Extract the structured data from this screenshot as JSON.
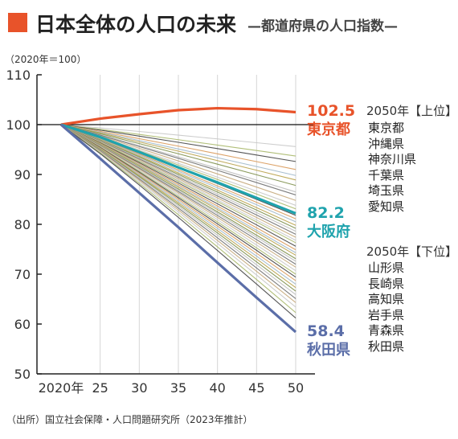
{
  "header": {
    "title": "日本全体の人口の未来",
    "subtitle": "—都道府県の人口指数—",
    "accent_color": "#e8532a"
  },
  "source": "（出所）国立社会保障・人口問題研究所（2023年推計）",
  "chart_data": {
    "type": "line",
    "unit_note": "（2020年＝100）",
    "xlabel": "",
    "ylabel": "",
    "x": [
      2020,
      2025,
      2030,
      2035,
      2040,
      2045,
      2050
    ],
    "x_tick_labels": [
      "2020年",
      "25",
      "30",
      "35",
      "40",
      "45",
      "50"
    ],
    "ylim": [
      50,
      110
    ],
    "y_ticks": [
      50,
      60,
      70,
      80,
      90,
      100,
      110
    ],
    "grid": "vertical",
    "highlight_series": [
      {
        "name": "東京都",
        "color": "#e8532a",
        "end_label": "102.5",
        "values": [
          100,
          101.2,
          102.1,
          102.9,
          103.3,
          103.1,
          102.5
        ]
      },
      {
        "name": "大阪府",
        "color": "#1fa3ad",
        "end_label": "82.2",
        "values": [
          100,
          97.5,
          94.5,
          91.4,
          88.4,
          85.3,
          82.2
        ]
      },
      {
        "name": "秋田県",
        "color": "#5b6ea8",
        "end_label": "58.4",
        "values": [
          100,
          93.2,
          86.3,
          79.4,
          72.3,
          65.3,
          58.4
        ]
      }
    ],
    "other_prefecture_final_values": [
      95.6,
      93.7,
      92.6,
      91.0,
      89.8,
      88.9,
      87.8,
      86.5,
      85.9,
      84.8,
      83.8,
      83.1,
      81.8,
      81.1,
      80.5,
      79.8,
      79.2,
      78.6,
      78.0,
      77.4,
      76.8,
      76.3,
      75.6,
      74.9,
      74.3,
      73.8,
      73.1,
      72.6,
      72.0,
      71.4,
      70.7,
      70.0,
      69.4,
      68.7,
      68.0,
      67.3,
      66.6,
      65.9,
      65.1,
      64.3,
      63.4,
      62.3,
      61.2
    ],
    "other_line_colors": [
      "#c8c8c8",
      "#a8b86a",
      "#444444",
      "#d99a5a",
      "#9fb7c9",
      "#b9a24a",
      "#7d8f4a",
      "#bdbdbd",
      "#6f6f6f",
      "#c5a87a"
    ],
    "baseline_color": "#111111"
  },
  "rankings": {
    "top_heading": "2050年【上位】",
    "top": [
      "東京都",
      "沖縄県",
      "神奈川県",
      "千葉県",
      "埼玉県",
      "愛知県"
    ],
    "bottom_heading": "2050年【下位】",
    "bottom": [
      "山形県",
      "長崎県",
      "高知県",
      "岩手県",
      "青森県",
      "秋田県"
    ]
  }
}
